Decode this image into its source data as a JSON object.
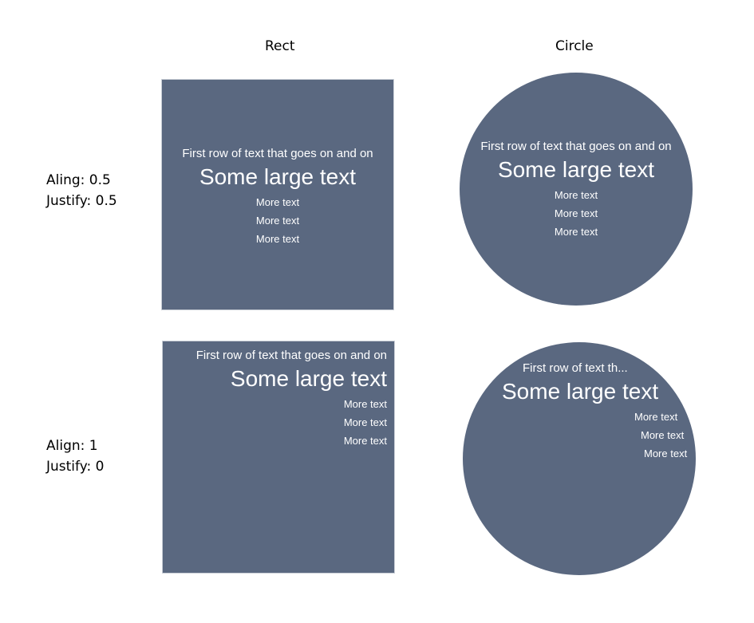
{
  "headers": {
    "rect": "Rect",
    "circle": "Circle"
  },
  "rows": [
    {
      "label_line1": "Aling: 0.5",
      "label_line2": "Justify: 0.5"
    },
    {
      "label_line1": "Align: 1",
      "label_line2": "Justify: 0"
    }
  ],
  "shapes": {
    "rect_center": {
      "first": "First row of text that goes on and on",
      "large": "Some large text",
      "more": [
        "More text",
        "More text",
        "More text"
      ]
    },
    "circle_center": {
      "first": "First row of text that goes on and on",
      "large": "Some large text",
      "more": [
        "More text",
        "More text",
        "More text"
      ]
    },
    "rect_right": {
      "first": "First row of text that goes on and on",
      "large": "Some large text",
      "more": [
        "More text",
        "More text",
        "More text"
      ]
    },
    "circle_right": {
      "first": "First row of text th...",
      "large": "Some large text",
      "more": [
        "More text",
        "More text",
        "More text"
      ]
    }
  },
  "colors": {
    "fill": "#5a6880",
    "text": "#ffffff"
  }
}
